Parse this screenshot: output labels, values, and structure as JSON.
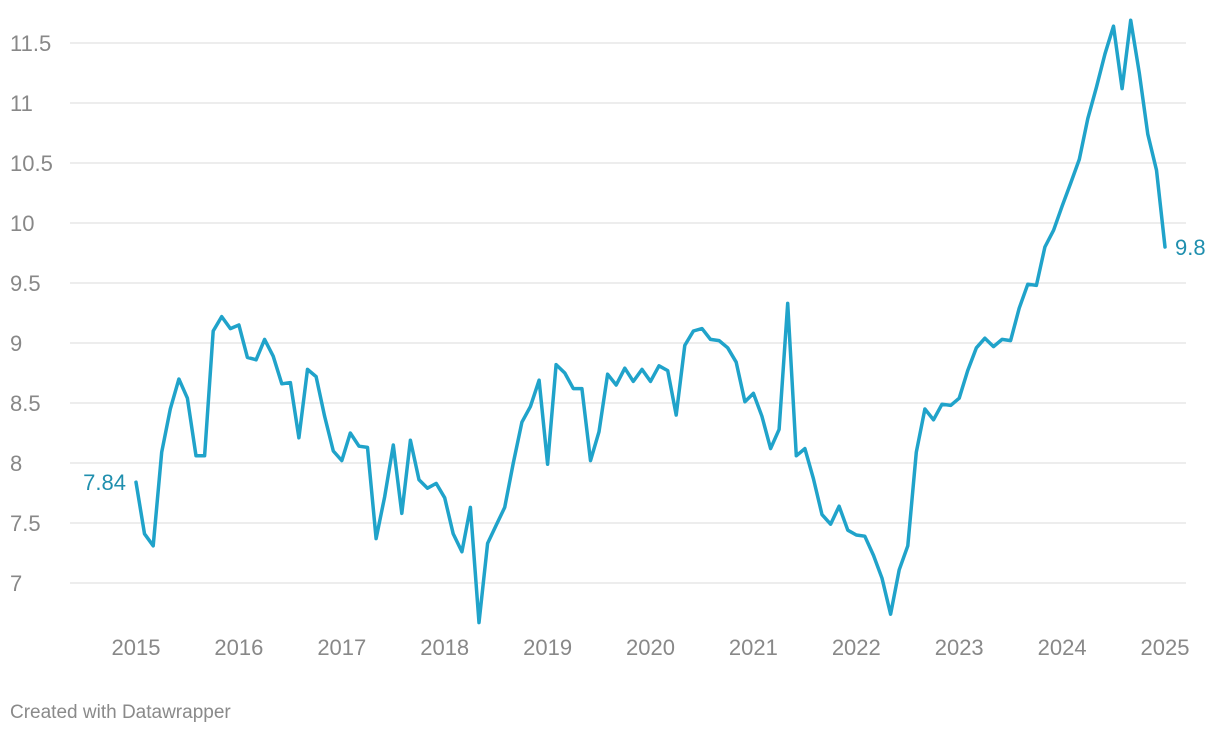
{
  "chart_data": {
    "type": "line",
    "title": "",
    "xlabel": "",
    "ylabel": "",
    "ylim": [
      6.7,
      11.7
    ],
    "xlim": [
      2015.0,
      2025.0
    ],
    "y_ticks": [
      "7",
      "7.5",
      "8",
      "8.5",
      "9",
      "9.5",
      "10",
      "10.5",
      "11",
      "11.5"
    ],
    "x_ticks": [
      "2015",
      "2016",
      "2017",
      "2018",
      "2019",
      "2020",
      "2021",
      "2022",
      "2023",
      "2024",
      "2025"
    ],
    "grid": "horizontal",
    "color": "#20a3ca",
    "label_color": "#1f8fae",
    "start_label": "7.84",
    "end_label": "9.8",
    "series": [
      {
        "x": [
          2015.0,
          2015.083,
          2015.167,
          2015.25,
          2015.333,
          2015.417,
          2015.5,
          2015.583,
          2015.667,
          2015.75,
          2015.833,
          2015.917,
          2016.0,
          2016.083,
          2016.167,
          2016.25,
          2016.333,
          2016.417,
          2016.5,
          2016.583,
          2016.667,
          2016.75,
          2016.833,
          2016.917,
          2017.0,
          2017.083,
          2017.167,
          2017.25,
          2017.333,
          2017.417,
          2017.5,
          2017.583,
          2017.667,
          2017.75,
          2017.833,
          2017.917,
          2018.0,
          2018.083,
          2018.167,
          2018.25,
          2018.333,
          2018.417,
          2018.5,
          2018.583,
          2018.667,
          2018.75,
          2018.833,
          2018.917,
          2019.0,
          2019.083,
          2019.167,
          2019.25,
          2019.333,
          2019.417,
          2019.5,
          2019.583,
          2019.667,
          2019.75,
          2019.833,
          2019.917,
          2020.0,
          2020.083,
          2020.167,
          2020.25,
          2020.333,
          2020.417,
          2020.5,
          2020.583,
          2020.667,
          2020.75,
          2020.833,
          2020.917,
          2021.0,
          2021.083,
          2021.167,
          2021.25,
          2021.333,
          2021.417,
          2021.5,
          2021.583,
          2021.667,
          2021.75,
          2021.833,
          2021.917,
          2022.0,
          2022.083,
          2022.167,
          2022.25,
          2022.333,
          2022.417,
          2022.5,
          2022.583,
          2022.667,
          2022.75,
          2022.833,
          2022.917,
          2023.0,
          2023.083,
          2023.167,
          2023.25,
          2023.333,
          2023.417,
          2023.5,
          2023.583,
          2023.667,
          2023.75,
          2023.833,
          2023.917,
          2024.0,
          2024.083,
          2024.167,
          2024.25,
          2024.333,
          2024.417,
          2024.5,
          2024.583,
          2024.667,
          2024.75,
          2024.833,
          2024.917,
          2025.0
        ],
        "values": [
          7.84,
          7.41,
          7.31,
          8.09,
          8.45,
          8.7,
          8.54,
          8.06,
          8.06,
          9.1,
          9.22,
          9.12,
          9.15,
          8.88,
          8.86,
          9.03,
          8.89,
          8.66,
          8.67,
          8.21,
          8.78,
          8.72,
          8.39,
          8.1,
          8.02,
          8.25,
          8.14,
          8.13,
          7.37,
          7.72,
          8.15,
          7.58,
          8.19,
          7.86,
          7.79,
          7.83,
          7.71,
          7.41,
          7.26,
          7.63,
          6.67,
          7.33,
          7.48,
          7.63,
          8.0,
          8.34,
          8.47,
          8.69,
          7.99,
          8.82,
          8.75,
          8.62,
          8.62,
          8.02,
          8.26,
          8.74,
          8.65,
          8.79,
          8.68,
          8.78,
          8.68,
          8.81,
          8.77,
          8.4,
          8.98,
          9.1,
          9.12,
          9.03,
          9.02,
          8.96,
          8.84,
          8.51,
          8.58,
          8.39,
          8.12,
          8.28,
          9.33,
          8.06,
          8.12,
          7.87,
          7.57,
          7.49,
          7.64,
          7.44,
          7.4,
          7.39,
          7.23,
          7.04,
          6.74,
          7.11,
          7.31,
          8.09,
          8.45,
          8.36,
          8.49,
          8.48,
          8.54,
          8.77,
          8.96,
          9.04,
          8.97,
          9.03,
          9.02,
          9.29,
          9.49,
          9.48,
          9.8,
          9.94,
          10.14,
          10.33,
          10.53,
          10.87,
          11.13,
          11.41,
          11.64,
          11.12,
          11.69,
          11.25,
          10.74,
          10.44,
          9.8
        ]
      }
    ]
  },
  "footer": {
    "credit": "Created with Datawrapper"
  }
}
